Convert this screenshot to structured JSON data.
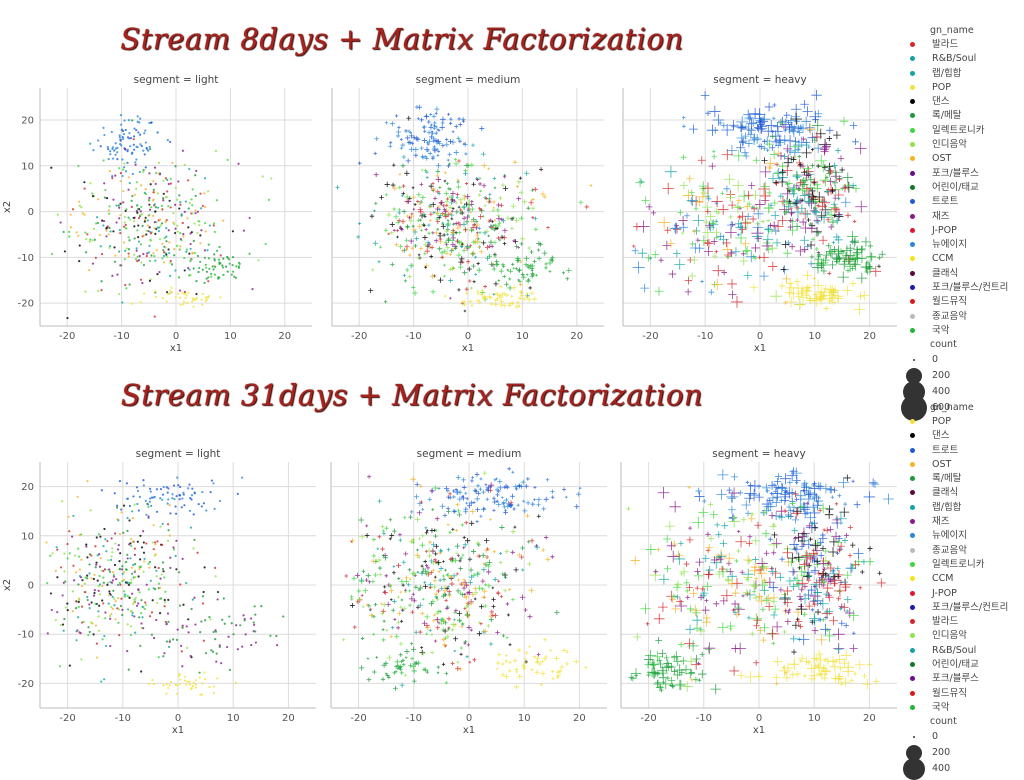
{
  "titles": {
    "top": "Stream 8days + Matrix Factorization",
    "bottom": "Stream 31days + Matrix Factorization"
  },
  "legend_top": {
    "title": "gn_name",
    "items": [
      {
        "label": "발라드",
        "color": "#d62728"
      },
      {
        "label": "R&B/Soul",
        "color": "#17a2a2"
      },
      {
        "label": "랩/힙합",
        "color": "#12a5a5"
      },
      {
        "label": "POP",
        "color": "#f2e23a"
      },
      {
        "label": "댄스",
        "color": "#000000"
      },
      {
        "label": "록/메탈",
        "color": "#1a9a3a"
      },
      {
        "label": "일렉트로니카",
        "color": "#3dd63d"
      },
      {
        "label": "인디음악",
        "color": "#8fe34a"
      },
      {
        "label": "OST",
        "color": "#f5b324"
      },
      {
        "label": "포크/블루스",
        "color": "#6a0d91"
      },
      {
        "label": "어린이/태교",
        "color": "#0f7a2a"
      },
      {
        "label": "트로트",
        "color": "#1f5bd6"
      },
      {
        "label": "재즈",
        "color": "#8b1a8b"
      },
      {
        "label": "J-POP",
        "color": "#e0162b"
      },
      {
        "label": "뉴에이지",
        "color": "#2a86d8"
      },
      {
        "label": "CCM",
        "color": "#f5e21e"
      },
      {
        "label": "클래식",
        "color": "#5a0a3c"
      },
      {
        "label": "포크/블루스/컨트리",
        "color": "#1a1ab0"
      },
      {
        "label": "월드뮤직",
        "color": "#d91a1a"
      },
      {
        "label": "종교음악",
        "color": "#bbbbbb"
      },
      {
        "label": "국악",
        "color": "#22b53a"
      }
    ],
    "size_title": "count",
    "sizes": [
      "0",
      "200",
      "400",
      "600"
    ]
  },
  "legend_bottom": {
    "title": "gn_name",
    "items": [
      {
        "label": "POP",
        "color": "#f2e23a"
      },
      {
        "label": "댄스",
        "color": "#000000"
      },
      {
        "label": "트로트",
        "color": "#1f5bd6"
      },
      {
        "label": "OST",
        "color": "#f5b324"
      },
      {
        "label": "록/메탈",
        "color": "#1a9a3a"
      },
      {
        "label": "클래식",
        "color": "#5a0a3c"
      },
      {
        "label": "랩/힙합",
        "color": "#12a5a5"
      },
      {
        "label": "재즈",
        "color": "#8b1a8b"
      },
      {
        "label": "뉴에이지",
        "color": "#2a86d8"
      },
      {
        "label": "종교음악",
        "color": "#bbbbbb"
      },
      {
        "label": "일렉트로니카",
        "color": "#3dd63d"
      },
      {
        "label": "CCM",
        "color": "#f5e21e"
      },
      {
        "label": "J-POP",
        "color": "#e0162b"
      },
      {
        "label": "포크/블루스/컨트리",
        "color": "#1a1ab0"
      },
      {
        "label": "발라드",
        "color": "#d62728"
      },
      {
        "label": "인디음악",
        "color": "#8fe34a"
      },
      {
        "label": "R&B/Soul",
        "color": "#17a2a2"
      },
      {
        "label": "어린이/태교",
        "color": "#0f7a2a"
      },
      {
        "label": "포크/블루스",
        "color": "#6a0d91"
      },
      {
        "label": "월드뮤직",
        "color": "#d91a1a"
      },
      {
        "label": "국악",
        "color": "#22b53a"
      }
    ],
    "size_title": "count",
    "sizes": [
      "0",
      "200",
      "400"
    ]
  },
  "chart_data": [
    {
      "type": "scatter",
      "title": "segment = light",
      "xlabel": "x1",
      "ylabel": "x2",
      "xlim": [
        -25,
        25
      ],
      "ylim": [
        -25,
        27
      ],
      "xticks": [
        -20,
        -10,
        0,
        10,
        20
      ],
      "yticks": [
        -20,
        -10,
        0,
        10,
        20
      ],
      "grid": true,
      "clusters": [
        {
          "cx": -9,
          "cy": 15,
          "sx": 3,
          "sy": 3,
          "n": 90,
          "colors": [
            "#2a86d8",
            "#1f5bd6"
          ]
        },
        {
          "cx": -5,
          "cy": -3,
          "sx": 7,
          "sy": 7,
          "n": 420,
          "colors": [
            "#3dd63d",
            "#1a9a3a",
            "#d62728",
            "#8b1a8b",
            "#12a5a5",
            "#f5b324",
            "#8fe34a",
            "#000000"
          ]
        },
        {
          "cx": 8,
          "cy": -12,
          "sx": 3,
          "sy": 2,
          "n": 60,
          "colors": [
            "#1a9a3a",
            "#22b53a"
          ]
        },
        {
          "cx": 2,
          "cy": -19,
          "sx": 3,
          "sy": 1,
          "n": 40,
          "colors": [
            "#f2e23a"
          ]
        }
      ]
    },
    {
      "type": "scatter",
      "title": "segment = medium",
      "xlabel": "x1",
      "ylabel": "",
      "xlim": [
        -25,
        25
      ],
      "ylim": [
        -25,
        27
      ],
      "xticks": [
        -20,
        -10,
        0,
        10,
        20
      ],
      "yticks": [
        -20,
        -10,
        0,
        10,
        20
      ],
      "grid": true,
      "clusters": [
        {
          "cx": -7,
          "cy": 16,
          "sx": 4,
          "sy": 3,
          "n": 110,
          "colors": [
            "#2a86d8",
            "#1f5bd6"
          ]
        },
        {
          "cx": -2,
          "cy": -3,
          "sx": 7,
          "sy": 7,
          "n": 480,
          "colors": [
            "#3dd63d",
            "#1a9a3a",
            "#d62728",
            "#8b1a8b",
            "#12a5a5",
            "#f5b324",
            "#8fe34a",
            "#000000"
          ]
        },
        {
          "cx": 10,
          "cy": -12,
          "sx": 3,
          "sy": 2,
          "n": 60,
          "colors": [
            "#1a9a3a",
            "#22b53a"
          ]
        },
        {
          "cx": 5,
          "cy": -19,
          "sx": 4,
          "sy": 1,
          "n": 50,
          "colors": [
            "#f2e23a"
          ]
        }
      ]
    },
    {
      "type": "scatter",
      "title": "segment = heavy",
      "xlabel": "x1",
      "ylabel": "",
      "xlim": [
        -25,
        25
      ],
      "ylim": [
        -25,
        27
      ],
      "xticks": [
        -20,
        -10,
        0,
        10,
        20
      ],
      "yticks": [
        -20,
        -10,
        0,
        10,
        20
      ],
      "grid": true,
      "clusters": [
        {
          "cx": 2,
          "cy": 18,
          "sx": 6,
          "sy": 3,
          "n": 120,
          "colors": [
            "#2a86d8",
            "#1f5bd6"
          ]
        },
        {
          "cx": -5,
          "cy": -3,
          "sx": 9,
          "sy": 8,
          "n": 240,
          "colors": [
            "#3dd63d",
            "#d62728",
            "#8b1a8b",
            "#12a5a5",
            "#f5b324",
            "#8fe34a",
            "#2a86d8"
          ]
        },
        {
          "cx": 9,
          "cy": 4,
          "sx": 4,
          "sy": 7,
          "n": 220,
          "colors": [
            "#8b1a8b",
            "#3dd63d",
            "#000000",
            "#12a5a5",
            "#d62728",
            "#1a9a3a"
          ]
        },
        {
          "cx": 16,
          "cy": -10,
          "sx": 3,
          "sy": 2,
          "n": 70,
          "colors": [
            "#1a9a3a",
            "#22b53a"
          ]
        },
        {
          "cx": 10,
          "cy": -18,
          "sx": 4,
          "sy": 1.5,
          "n": 60,
          "colors": [
            "#f2e23a"
          ]
        }
      ]
    },
    {
      "type": "scatter",
      "title": "segment = light",
      "xlabel": "x1",
      "ylabel": "x2",
      "xlim": [
        -25,
        25
      ],
      "ylim": [
        -25,
        25
      ],
      "xticks": [
        -20,
        -10,
        0,
        10,
        20
      ],
      "yticks": [
        -20,
        -10,
        0,
        10,
        20
      ],
      "grid": true,
      "clusters": [
        {
          "cx": -2,
          "cy": 18,
          "sx": 6,
          "sy": 2,
          "n": 80,
          "colors": [
            "#2a86d8",
            "#1f5bd6"
          ]
        },
        {
          "cx": -11,
          "cy": 0,
          "sx": 7,
          "sy": 7,
          "n": 420,
          "colors": [
            "#3dd63d",
            "#1a9a3a",
            "#d62728",
            "#8b1a8b",
            "#12a5a5",
            "#f5b324",
            "#8fe34a",
            "#000000"
          ]
        },
        {
          "cx": 6,
          "cy": -10,
          "sx": 6,
          "sy": 3,
          "n": 70,
          "colors": [
            "#8b1a8b",
            "#1a9a3a"
          ]
        },
        {
          "cx": 2,
          "cy": -20,
          "sx": 4,
          "sy": 1,
          "n": 40,
          "colors": [
            "#f2e23a"
          ]
        }
      ]
    },
    {
      "type": "scatter",
      "title": "segment = medium",
      "xlabel": "x1",
      "ylabel": "",
      "xlim": [
        -25,
        25
      ],
      "ylim": [
        -25,
        25
      ],
      "xticks": [
        -20,
        -10,
        0,
        10,
        20
      ],
      "yticks": [
        -20,
        -10,
        0,
        10,
        20
      ],
      "grid": true,
      "clusters": [
        {
          "cx": 4,
          "cy": 18,
          "sx": 7,
          "sy": 2,
          "n": 120,
          "colors": [
            "#2a86d8",
            "#1f5bd6"
          ]
        },
        {
          "cx": -5,
          "cy": 0,
          "sx": 8,
          "sy": 8,
          "n": 480,
          "colors": [
            "#3dd63d",
            "#1a9a3a",
            "#d62728",
            "#8b1a8b",
            "#12a5a5",
            "#f5b324",
            "#8fe34a",
            "#000000"
          ]
        },
        {
          "cx": -13,
          "cy": -17,
          "sx": 3,
          "sy": 1.5,
          "n": 40,
          "colors": [
            "#1a9a3a",
            "#22b53a"
          ]
        },
        {
          "cx": 12,
          "cy": -16,
          "sx": 4,
          "sy": 2,
          "n": 50,
          "colors": [
            "#f2e23a"
          ]
        }
      ]
    },
    {
      "type": "scatter",
      "title": "segment = heavy",
      "xlabel": "x1",
      "ylabel": "",
      "xlim": [
        -25,
        25
      ],
      "ylim": [
        -25,
        25
      ],
      "xticks": [
        -20,
        -10,
        0,
        10,
        20
      ],
      "yticks": [
        -20,
        -10,
        0,
        10,
        20
      ],
      "grid": true,
      "clusters": [
        {
          "cx": 6,
          "cy": 18,
          "sx": 6,
          "sy": 2.5,
          "n": 120,
          "colors": [
            "#2a86d8",
            "#1f5bd6"
          ]
        },
        {
          "cx": -5,
          "cy": 0,
          "sx": 9,
          "sy": 8,
          "n": 240,
          "colors": [
            "#3dd63d",
            "#d62728",
            "#8b1a8b",
            "#12a5a5",
            "#f5b324",
            "#8fe34a"
          ]
        },
        {
          "cx": 11,
          "cy": 3,
          "sx": 4,
          "sy": 7,
          "n": 220,
          "colors": [
            "#8b1a8b",
            "#3dd63d",
            "#000000",
            "#12a5a5",
            "#d62728",
            "#1f5bd6"
          ]
        },
        {
          "cx": -16,
          "cy": -17,
          "sx": 3,
          "sy": 2,
          "n": 60,
          "colors": [
            "#1a9a3a",
            "#22b53a"
          ]
        },
        {
          "cx": 10,
          "cy": -17,
          "sx": 5,
          "sy": 1.5,
          "n": 60,
          "colors": [
            "#f2e23a"
          ]
        }
      ]
    }
  ]
}
